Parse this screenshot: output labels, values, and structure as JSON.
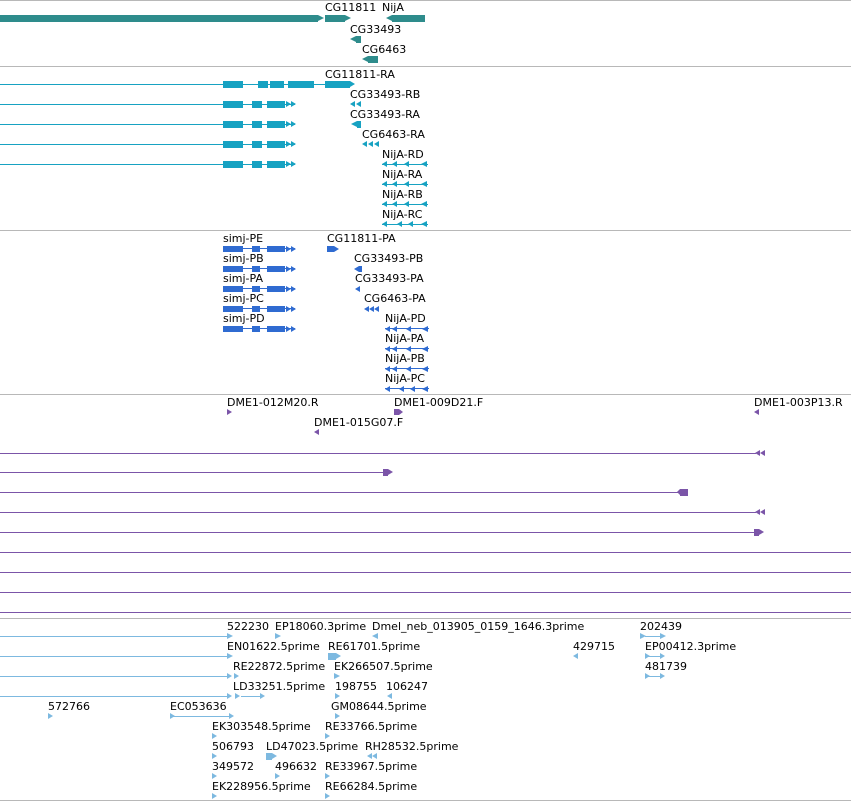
{
  "colors": {
    "gene_dark": "#2e8c8c",
    "transcript": "#17a2c2",
    "protein": "#2f6bd1",
    "clone": "#7b55a8",
    "est": "#7db9e0",
    "separator": "#b8b8b8"
  },
  "tracks": {
    "genes": {
      "labels": [
        "CG11811",
        "NijA",
        "CG33493",
        "CG6463"
      ]
    },
    "transcripts": {
      "labels": [
        "CG11811-RA",
        "CG33493-RB",
        "CG33493-RA",
        "CG6463-RA",
        "NijA-RD",
        "NijA-RA",
        "NijA-RB",
        "NijA-RC"
      ]
    },
    "proteins": {
      "labels": [
        "simj-PE",
        "CG11811-PA",
        "simj-PB",
        "CG33493-PB",
        "simj-PA",
        "CG33493-PA",
        "simj-PC",
        "CG6463-PA",
        "simj-PD",
        "NijA-PD",
        "NijA-PA",
        "NijA-PB",
        "NijA-PC"
      ]
    },
    "clones": {
      "labels": [
        "DME1-012M20.R",
        "DME1-009D21.F",
        "DME1-003P13.R",
        "DME1-015G07.F"
      ]
    },
    "ests": {
      "labels": [
        "522230",
        "EP18060.3prime",
        "Dmel_neb_013905_0159_1646.3prime",
        "202439",
        "EN01622.5prime",
        "RE61701.5prime",
        "429715",
        "EP00412.3prime",
        "RE22872.5prime",
        "EK266507.5prime",
        "481739",
        "LD33251.5prime",
        "198755",
        "106247",
        "572766",
        "EC053636",
        "GM08644.5prime",
        "EK303548.5prime",
        "RE33766.5prime",
        "506793",
        "LD47023.5prime",
        "RH28532.5prime",
        "349572",
        "496632",
        "RE33967.5prime",
        "EK228956.5prime",
        "RE66284.5prime"
      ]
    }
  }
}
